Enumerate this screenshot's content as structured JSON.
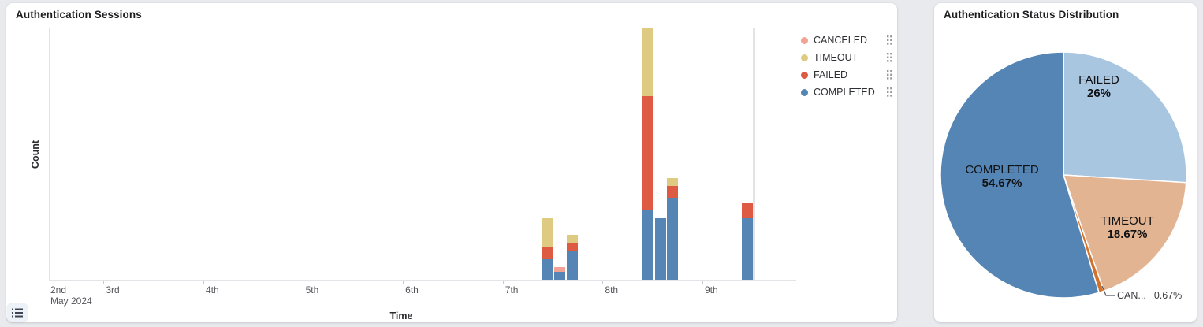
{
  "left_card": {
    "title": "Authentication Sessions",
    "x_axis_label": "Time",
    "y_axis_label": "Count",
    "x_min_label": {
      "line1": "2nd",
      "line2": "May 2024"
    },
    "legend": [
      {
        "label": "CANCELED",
        "color": "#f1a493"
      },
      {
        "label": "TIMEOUT",
        "color": "#dfca81"
      },
      {
        "label": "FAILED",
        "color": "#df5a43"
      },
      {
        "label": "COMPLETED",
        "color": "#5585b5"
      }
    ]
  },
  "right_card": {
    "title": "Authentication Status Distribution"
  },
  "chart_data": [
    {
      "type": "bar",
      "title": "Authentication Sessions",
      "stacked": true,
      "xlabel": "Time",
      "ylabel": "Count",
      "grid": false,
      "legend_position": "right",
      "x_unit": "fractional day of May 2024 (bar left edge, ~3-hour buckets)",
      "x": [
        7.386,
        7.508,
        7.63,
        8.386,
        8.515,
        8.64,
        9.39
      ],
      "series": [
        {
          "name": "COMPLETED",
          "color": "#5585b5",
          "values": [
            5,
            2,
            7,
            17,
            15,
            20,
            15
          ]
        },
        {
          "name": "FAILED",
          "color": "#df5a43",
          "values": [
            3,
            0,
            2,
            28,
            0,
            3,
            4
          ]
        },
        {
          "name": "TIMEOUT",
          "color": "#dfca81",
          "values": [
            7,
            0,
            2,
            20,
            0,
            2,
            0
          ]
        },
        {
          "name": "CANCELED",
          "color": "#f1a493",
          "values": [
            0,
            1,
            0,
            0,
            0,
            0,
            0
          ]
        }
      ],
      "x_axis": {
        "min": 2.452,
        "max": 9.94,
        "ticks": [
          {
            "day": 3,
            "label": "3rd"
          },
          {
            "day": 4,
            "label": "4th"
          },
          {
            "day": 5,
            "label": "5th"
          },
          {
            "day": 6,
            "label": "6th"
          },
          {
            "day": 7,
            "label": "7th"
          },
          {
            "day": 8,
            "label": "8th"
          },
          {
            "day": 9,
            "label": "9th"
          }
        ]
      },
      "ylim": [
        0,
        62
      ],
      "y_tick_labels_shown": false,
      "marker_line_day": 9.494,
      "tallest_bar_clipped_at_top": true
    },
    {
      "type": "pie",
      "title": "Authentication Status Distribution",
      "start_angle_deg": 0,
      "direction": "clockwise",
      "slices": [
        {
          "label": "FAILED",
          "pct": 26,
          "pct_label": "26%",
          "color": "#a9c6e1"
        },
        {
          "label": "TIMEOUT",
          "pct": 18.67,
          "pct_label": "18.67%",
          "color": "#e3b491"
        },
        {
          "label": "CANCELED",
          "pct": 0.67,
          "pct_label": "0.67%",
          "color": "#d3722b",
          "truncated_label": "CAN..."
        },
        {
          "label": "COMPLETED",
          "pct": 54.67,
          "pct_label": "54.67%",
          "color": "#5585b5"
        }
      ]
    }
  ]
}
